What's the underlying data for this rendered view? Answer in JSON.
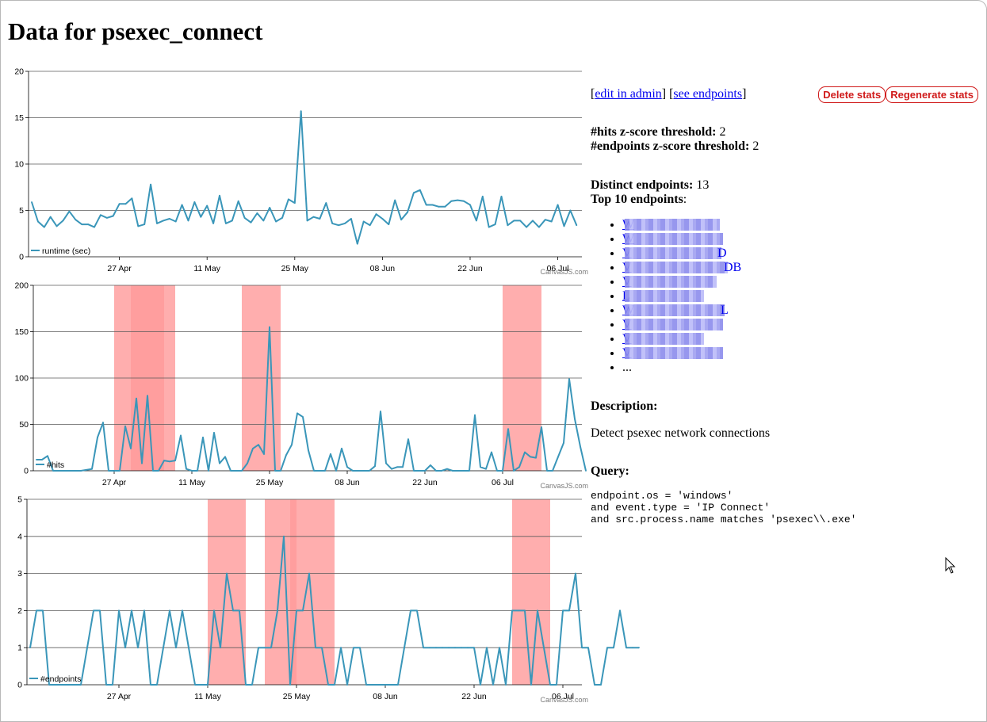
{
  "page": {
    "title": "Data for psexec_connect"
  },
  "links": {
    "open_bracket": "[",
    "edit_in_admin": "edit in admin",
    "mid_bracket": "] [",
    "see_endpoints": "see endpoints",
    "close_bracket": "]"
  },
  "buttons": {
    "delete_stats": "Delete stats",
    "regenerate_stats": "Regenerate stats"
  },
  "thresholds": {
    "hits_label": "#hits z-score threshold:",
    "hits_value": "2",
    "endpoints_label": "#endpoints z-score threshold:",
    "endpoints_value": "2"
  },
  "endpoints": {
    "distinct_label": "Distinct endpoints:",
    "distinct_value": "13",
    "top_label": "Top 10 endpoints",
    "top_colon": ":",
    "items": [
      {
        "visible": "W",
        "suffix": ""
      },
      {
        "visible": "W",
        "suffix": ""
      },
      {
        "visible": "V",
        "suffix": "D"
      },
      {
        "visible": "V",
        "suffix": "DB"
      },
      {
        "visible": "V",
        "suffix": ""
      },
      {
        "visible": "L",
        "suffix": ""
      },
      {
        "visible": "W",
        "suffix": "L"
      },
      {
        "visible": "V",
        "suffix": ""
      },
      {
        "visible": "V",
        "suffix": ""
      },
      {
        "visible": "V",
        "suffix": ""
      }
    ],
    "more": "..."
  },
  "description": {
    "heading": "Description:",
    "text": "Detect psexec network connections"
  },
  "query": {
    "heading": "Query:",
    "text": "endpoint.os = 'windows'\nand event.type = 'IP Connect'\nand src.process.name matches 'psexec\\\\.exe'"
  },
  "colors": {
    "line": "#3a96b9",
    "grid": "#999999",
    "anomaly_band": "#ff9a9a",
    "anomaly_band_dark": "#ff6b6b",
    "button_red": "#d01b1b",
    "link": "#0000ee"
  },
  "chart_data": [
    {
      "type": "line",
      "series": [
        {
          "name": "runtime (sec)",
          "values": [
            5.9,
            3.8,
            3.2,
            4.3,
            3.3,
            3.9,
            4.9,
            4.0,
            3.5,
            3.5,
            3.2,
            4.5,
            4.2,
            4.4,
            5.7,
            5.7,
            6.3,
            3.3,
            3.5,
            7.8,
            3.6,
            3.9,
            4.1,
            3.8,
            5.6,
            3.9,
            5.9,
            4.3,
            5.5,
            3.6,
            6.6,
            3.6,
            3.9,
            6.0,
            4.2,
            3.7,
            4.7,
            3.9,
            5.3,
            3.8,
            4.2,
            6.2,
            5.8,
            15.7,
            3.9,
            4.3,
            4.1,
            5.8,
            3.6,
            3.4,
            3.6,
            4.1,
            1.4,
            3.8,
            3.4,
            4.6,
            4.1,
            3.5,
            6.1,
            4.0,
            4.8,
            6.9,
            7.2,
            5.6,
            5.6,
            5.4,
            5.4,
            6.0,
            6.1,
            6.0,
            5.6,
            3.9,
            6.5,
            3.2,
            3.5,
            6.5,
            3.4,
            3.9,
            3.9,
            3.2,
            3.9,
            3.2,
            4.0,
            3.8,
            5.6,
            3.3,
            5.0,
            3.4
          ]
        }
      ],
      "x_labels": [
        "27 Apr",
        "11 May",
        "25 May",
        "08 Jun",
        "22 Jun",
        "06 Jul"
      ],
      "ylim": [
        0,
        20
      ],
      "y_ticks": [
        0,
        5,
        10,
        15,
        20
      ],
      "legend": "bottom-left",
      "credit": "CanvasJS.com",
      "grid": true
    },
    {
      "type": "line",
      "series": [
        {
          "name": "#hits",
          "values": [
            12,
            12,
            16,
            0,
            0,
            0,
            0,
            0,
            0,
            1,
            2,
            36,
            52,
            0,
            0,
            0,
            48,
            24,
            78,
            8,
            81,
            0,
            0,
            11,
            10,
            11,
            38,
            2,
            0,
            0,
            36,
            0,
            41,
            8,
            15,
            0,
            0,
            0,
            8,
            24,
            28,
            18,
            155,
            0,
            0,
            17,
            28,
            62,
            58,
            22,
            0,
            0,
            0,
            18,
            0,
            24,
            4,
            0,
            0,
            0,
            0,
            5,
            64,
            8,
            2,
            4,
            4,
            34,
            0,
            0,
            0,
            6,
            0,
            0,
            2,
            0,
            0,
            0,
            0,
            60,
            4,
            2,
            20,
            0,
            0,
            45,
            0,
            4,
            20,
            15,
            14,
            47,
            0,
            0,
            15,
            30,
            99,
            56,
            26,
            0
          ]
        }
      ],
      "x_labels": [
        "27 Apr",
        "11 May",
        "25 May",
        "08 Jun",
        "22 Jun",
        "06 Jul"
      ],
      "ylim": [
        0,
        200
      ],
      "y_ticks": [
        0,
        50,
        100,
        150,
        200
      ],
      "anomaly_bands": [
        [
          "2023-04-27",
          "2023-05-08"
        ],
        [
          "2023-04-30",
          "2023-05-06"
        ],
        [
          "2023-05-20",
          "2023-05-27"
        ],
        [
          "2023-07-06",
          "2023-07-13"
        ]
      ],
      "legend": "bottom-left",
      "credit": "CanvasJS.com",
      "grid": true
    },
    {
      "type": "line",
      "series": [
        {
          "name": "#endpoints",
          "values": [
            1,
            2,
            2,
            0,
            0,
            0,
            0,
            0,
            0,
            1,
            2,
            2,
            0,
            0,
            2,
            1,
            2,
            1,
            2,
            0,
            0,
            1,
            2,
            1,
            2,
            1,
            0,
            0,
            0,
            2,
            1,
            3,
            2,
            2,
            0,
            0,
            1,
            1,
            1,
            2,
            4,
            0,
            2,
            2,
            3,
            1,
            1,
            0,
            0,
            1,
            0,
            1,
            1,
            0,
            0,
            0,
            0,
            0,
            0,
            1,
            2,
            2,
            1,
            1,
            1,
            1,
            1,
            1,
            1,
            1,
            1,
            0,
            1,
            0,
            1,
            0,
            2,
            2,
            2,
            0,
            2,
            1,
            0,
            0,
            2,
            2,
            3,
            1,
            1,
            0,
            0,
            1,
            1,
            2,
            1,
            1,
            1
          ]
        }
      ],
      "x_labels": [
        "27 Apr",
        "11 May",
        "25 May",
        "08 Jun",
        "22 Jun",
        "06 Jul"
      ],
      "ylim": [
        0,
        5
      ],
      "y_ticks": [
        0,
        1,
        2,
        3,
        4,
        5
      ],
      "anomaly_bands": [
        [
          "2023-05-11",
          "2023-05-17"
        ],
        [
          "2023-05-20",
          "2023-05-31"
        ],
        [
          "2023-05-24",
          "2023-05-25"
        ],
        [
          "2023-06-28",
          "2023-07-04"
        ]
      ],
      "legend": "bottom-left",
      "credit": "CanvasJS.com",
      "grid": true
    }
  ]
}
